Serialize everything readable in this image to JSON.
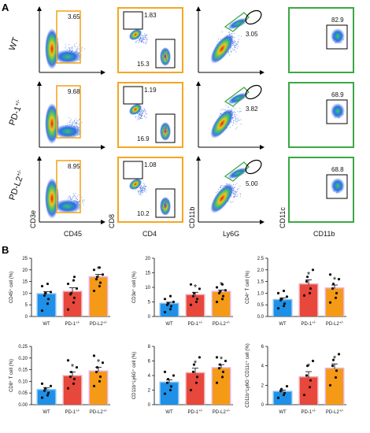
{
  "panel_a_label": "A",
  "panel_b_label": "B",
  "colors": {
    "wt": "#1e90e8",
    "pd1": "#e8473c",
    "pdl2": "#f59a16",
    "wt_border": "#7fc0f4",
    "pd1_border": "#f0a8b0",
    "pdl2_border": "#e8b4e8",
    "gate_orange": "#f5a623",
    "gate_green": "#3aa845"
  },
  "flow": {
    "rows": [
      {
        "name": "WT",
        "sup": ""
      },
      {
        "name": "PD-1",
        "sup": "+/-"
      },
      {
        "name": "PD-L2",
        "sup": "+/-"
      }
    ],
    "columns": [
      {
        "xlabel": "CD45",
        "ylabel": "CD3e"
      },
      {
        "xlabel": "CD4",
        "ylabel": "CD8"
      },
      {
        "xlabel": "Ly6G",
        "ylabel": "CD11b"
      },
      {
        "xlabel": "CD11b",
        "ylabel": "CD11c"
      }
    ],
    "gate_values": [
      [
        "3.65",
        "1.83",
        "15.3",
        "3.05",
        "82.9"
      ],
      [
        "9.68",
        "1.19",
        "16.9",
        "3.82",
        "68.9"
      ],
      [
        "8.95",
        "1.08",
        "10.2",
        "5.00",
        "68.8"
      ]
    ]
  },
  "chart_data": [
    {
      "type": "bar",
      "ylabel": "CD45⁺ cell (%)",
      "yticks": [
        "0",
        "5",
        "10",
        "15",
        "20",
        "25"
      ],
      "ylim": [
        0,
        25
      ],
      "categories": [
        "WT",
        "PD-1+/-",
        "PD-L2+/-"
      ],
      "values": [
        9.5,
        10.5,
        16.8
      ],
      "errors": [
        1.2,
        1.8,
        1.3
      ],
      "significant": [
        false,
        false,
        true
      ],
      "points": [
        [
          2.5,
          5.5,
          7.5,
          9,
          10,
          10.5,
          13,
          14
        ],
        [
          3,
          6,
          8,
          9.5,
          10,
          12,
          14,
          15.5,
          17
        ],
        [
          11,
          13,
          14.5,
          16,
          17,
          18,
          20,
          21
        ]
      ]
    },
    {
      "type": "bar",
      "ylabel": "CD3e⁺ cell (%)",
      "yticks": [
        "0",
        "5",
        "10",
        "15",
        "20"
      ],
      "ylim": [
        0,
        20
      ],
      "categories": [
        "WT",
        "PD-1+/-",
        "PD-L2+/-"
      ],
      "values": [
        4.3,
        7.3,
        8.4
      ],
      "errors": [
        0.6,
        1.0,
        0.7
      ],
      "significant": [
        false,
        true,
        true
      ],
      "points": [
        [
          1.5,
          2.5,
          3.5,
          4,
          4.5,
          5,
          6,
          7
        ],
        [
          4,
          5,
          6,
          7,
          8,
          9.5,
          11
        ],
        [
          5,
          6,
          7,
          8,
          8.5,
          9,
          10,
          11
        ]
      ]
    },
    {
      "type": "bar",
      "ylabel": "CD4⁺ T cell (%)",
      "yticks": [
        "0.0",
        "0.5",
        "1.0",
        "1.5",
        "2.0",
        "2.5"
      ],
      "ylim": [
        0,
        2.5
      ],
      "categories": [
        "WT",
        "PD-1+/-",
        "PD-L2+/-"
      ],
      "values": [
        0.7,
        1.37,
        1.2
      ],
      "errors": [
        0.1,
        0.2,
        0.15
      ],
      "significant": [
        false,
        true,
        true
      ],
      "points": [
        [
          0.35,
          0.45,
          0.55,
          0.7,
          0.75,
          0.85,
          1.0,
          1.1
        ],
        [
          0.9,
          1.0,
          1.2,
          1.5,
          1.7,
          2.0
        ],
        [
          0.6,
          0.8,
          1.0,
          1.2,
          1.4,
          1.6,
          1.8
        ]
      ]
    },
    {
      "type": "bar",
      "ylabel": "CD8⁺ T cell (%)",
      "yticks": [
        "0.00",
        "0.05",
        "0.10",
        "0.15",
        "0.20",
        "0.25"
      ],
      "ylim": [
        0,
        0.25
      ],
      "categories": [
        "WT",
        "PD-1+/-",
        "PD-L2+/-"
      ],
      "values": [
        0.062,
        0.122,
        0.142
      ],
      "errors": [
        0.01,
        0.018,
        0.018
      ],
      "significant": [
        false,
        true,
        true
      ],
      "points": [
        [
          0.03,
          0.04,
          0.05,
          0.06,
          0.07,
          0.08,
          0.09
        ],
        [
          0.07,
          0.09,
          0.11,
          0.12,
          0.14,
          0.16,
          0.19
        ],
        [
          0.08,
          0.1,
          0.12,
          0.14,
          0.16,
          0.18,
          0.21
        ]
      ]
    },
    {
      "type": "bar",
      "ylabel": "CD11b⁺Ly6G⁺ cell (%)",
      "yticks": [
        "0",
        "2",
        "4",
        "6",
        "8"
      ],
      "ylim": [
        0,
        8
      ],
      "categories": [
        "WT",
        "PD-1+/-",
        "PD-L2+/-"
      ],
      "values": [
        3.0,
        4.3,
        5.0
      ],
      "errors": [
        0.4,
        0.7,
        0.5
      ],
      "significant": [
        false,
        true,
        true
      ],
      "points": [
        [
          1.5,
          2,
          2.5,
          3,
          3.5,
          4,
          4.5
        ],
        [
          2,
          3,
          3.8,
          4.5,
          5.5,
          6.5
        ],
        [
          3,
          3.8,
          4.5,
          5,
          5.5,
          6,
          6.5
        ]
      ]
    },
    {
      "type": "bar",
      "ylabel": "CD11b⁺Ly6G⁻CD11c⁺ cell (%)",
      "yticks": [
        "0",
        "2",
        "4",
        "6"
      ],
      "ylim": [
        0,
        6
      ],
      "categories": [
        "WT",
        "PD-1+/-",
        "PD-L2+/-"
      ],
      "values": [
        1.3,
        2.8,
        3.7
      ],
      "errors": [
        0.2,
        0.6,
        0.5
      ],
      "significant": [
        false,
        true,
        true
      ],
      "points": [
        [
          0.7,
          1.0,
          1.2,
          1.4,
          1.6,
          1.9
        ],
        [
          1.0,
          1.8,
          2.5,
          3.0,
          4.0,
          4.5
        ],
        [
          2.0,
          2.8,
          3.5,
          4.0,
          4.6,
          5.2
        ]
      ]
    }
  ]
}
